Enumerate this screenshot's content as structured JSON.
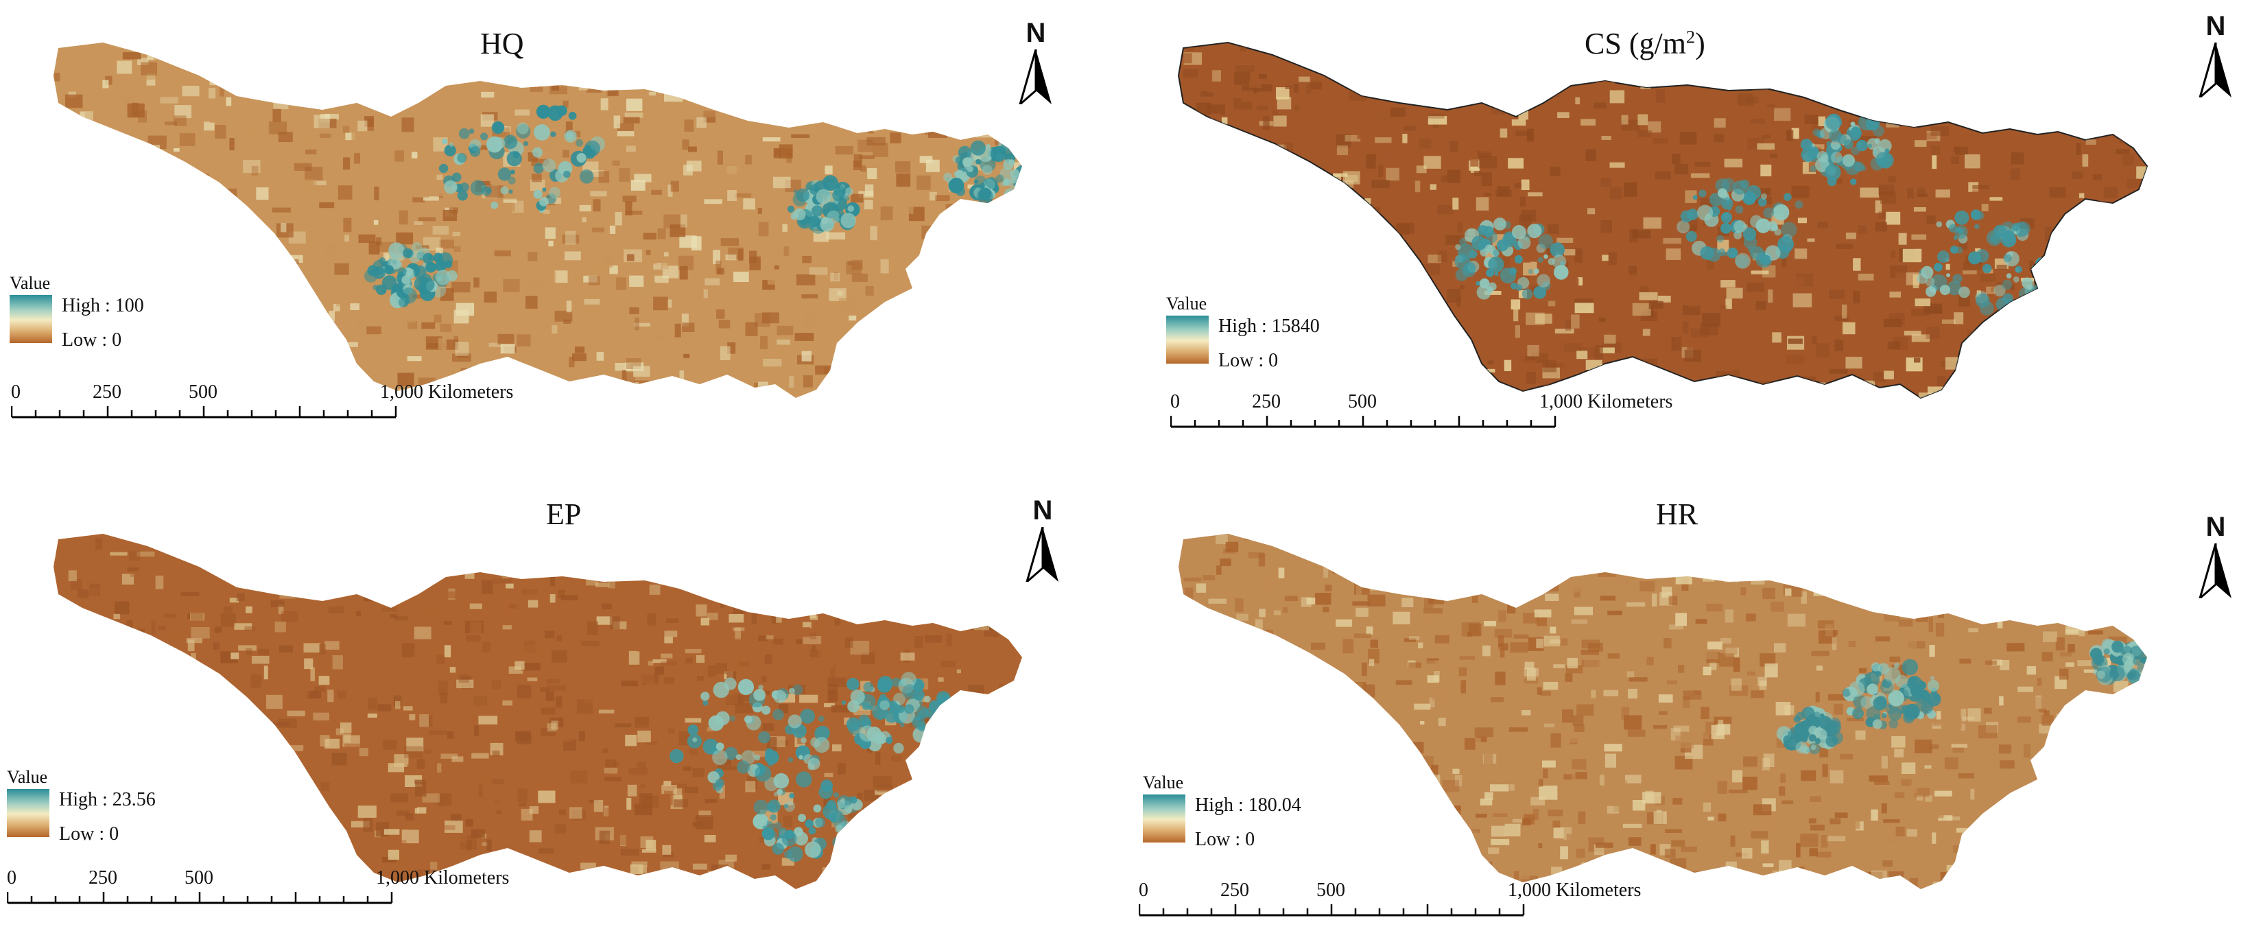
{
  "panels": [
    {
      "title": "HQ",
      "title_unit": "",
      "legend": {
        "title": "Value",
        "high_label": "High",
        "high_value": "100",
        "low_label": "Low",
        "low_value": "0"
      },
      "colors": {
        "base": "#c9955a",
        "teal": "#2f8e98",
        "pale": "#e9dfb3",
        "dark": "#a8612b"
      }
    },
    {
      "title": "CS (g/m",
      "title_sup": "2",
      "title_close": ")",
      "legend": {
        "title": "Value",
        "high_label": "High",
        "high_value": "15840",
        "low_label": "Low",
        "low_value": "0"
      },
      "colors": {
        "base": "#a4582a",
        "teal": "#3f97a0",
        "pale": "#e9d79c",
        "dark": "#8f4a1f"
      }
    },
    {
      "title": "EP",
      "title_unit": "",
      "legend": {
        "title": "Value",
        "high_label": "High",
        "high_value": "23.56",
        "low_label": "Low",
        "low_value": "0"
      },
      "colors": {
        "base": "#ae6430",
        "teal": "#3b97a0",
        "pale": "#dcc28c",
        "dark": "#9b5426"
      }
    },
    {
      "title": "HR",
      "title_unit": "",
      "legend": {
        "title": "Value",
        "high_label": "High",
        "high_value": "180.04",
        "low_label": "Low",
        "low_value": "0"
      },
      "colors": {
        "base": "#c08a53",
        "teal": "#3a8d95",
        "pale": "#e4d3a0",
        "dark": "#a9622b"
      }
    }
  ],
  "north_label": "N",
  "scale": {
    "ticks": [
      "0",
      "250",
      "500",
      "1,000"
    ],
    "unit": "Kilometers"
  },
  "ramp_colors": [
    "#2a8e99",
    "#9fcfc2",
    "#f4ebc1",
    "#dcac6e",
    "#b4662a"
  ]
}
